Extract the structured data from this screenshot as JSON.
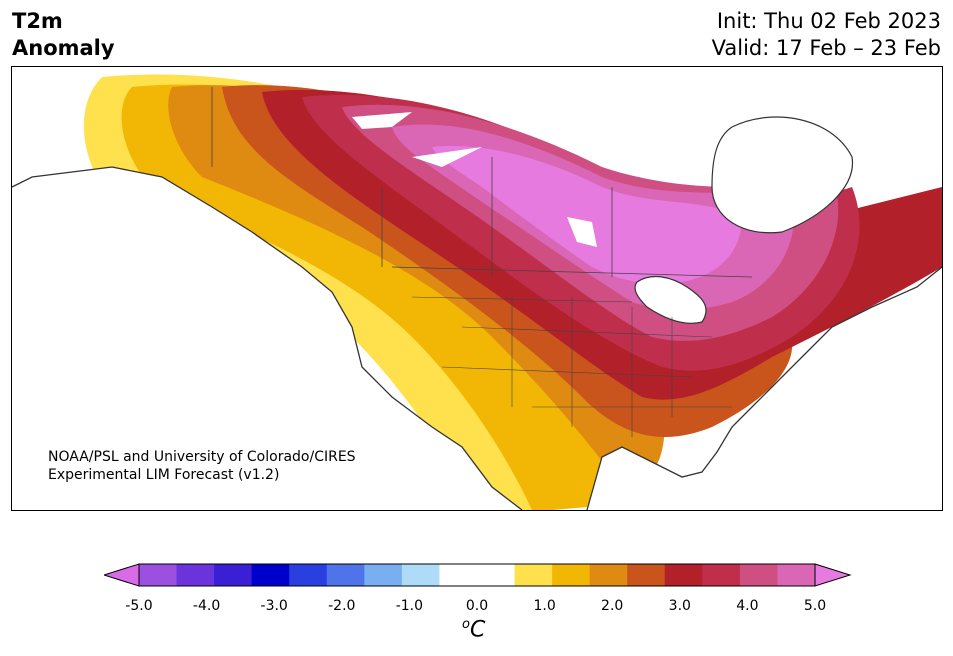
{
  "title": {
    "line1": "T2m",
    "line2": "Anomaly"
  },
  "dates": {
    "init": "Init: Thu 02 Feb 2023",
    "valid": "Valid: 17 Feb – 23 Feb"
  },
  "credit": {
    "line1": "NOAA/PSL and University of Colorado/CIRES",
    "line2": "Experimental LIM Forecast (v1.2)"
  },
  "colorbar": {
    "colors": [
      "#d96ae8",
      "#9b50e0",
      "#6a33dc",
      "#3a1fd4",
      "#0000cc",
      "#2a3fe0",
      "#4f73e8",
      "#79aef0",
      "#aedcf8",
      "#ffffff",
      "#ffffff",
      "#ffe14d",
      "#f2b705",
      "#df8a10",
      "#c9541c",
      "#b2202a",
      "#bf2e4a",
      "#cf4f82",
      "#d967b6",
      "#e77ade"
    ],
    "ticks": [
      "-5.0",
      "-4.0",
      "-3.0",
      "-2.0",
      "-1.0",
      "0.0",
      "1.0",
      "2.0",
      "3.0",
      "4.0",
      "5.0"
    ],
    "unit": "C",
    "unit_sup": "o"
  }
}
